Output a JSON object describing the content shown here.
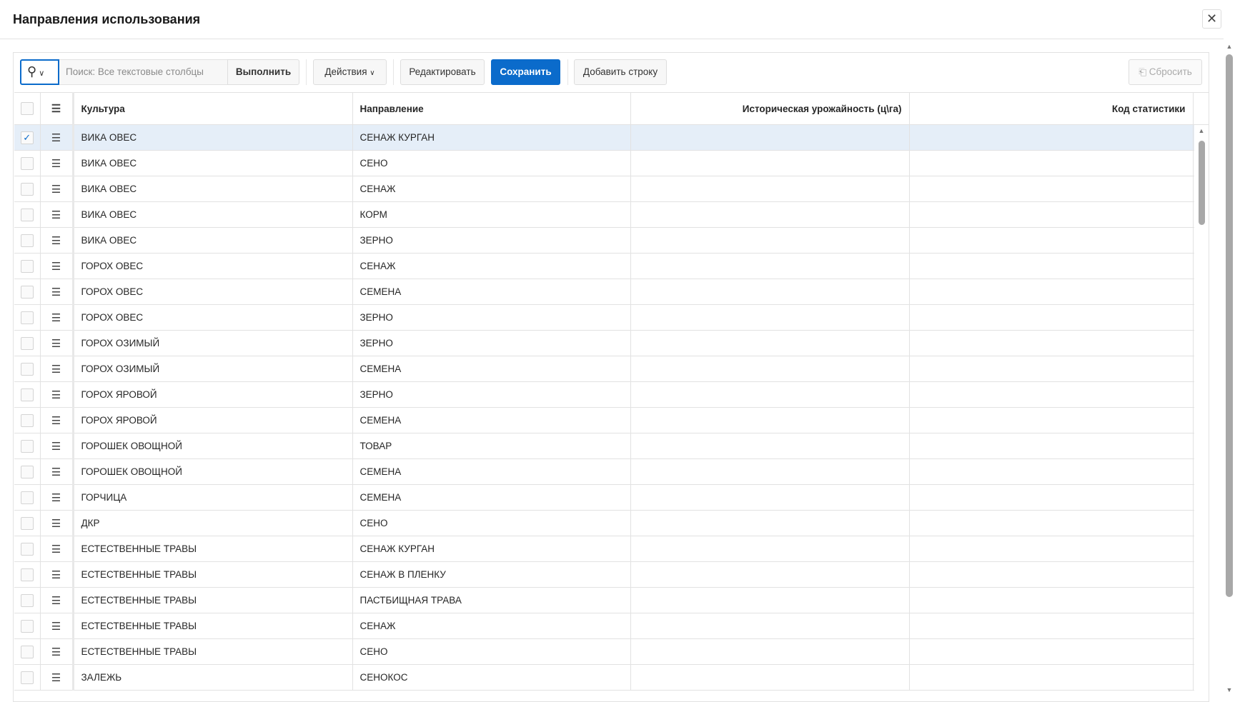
{
  "dialog": {
    "title": "Направления использования",
    "close_icon": "close-icon"
  },
  "toolbar": {
    "search_placeholder": "Поиск: Все текстовые столбцы",
    "run_label": "Выполнить",
    "actions_label": "Действия",
    "edit_label": "Редактировать",
    "save_label": "Сохранить",
    "add_row_label": "Добавить строку",
    "reset_label": "Сбросить",
    "accent": "#0b6bcb"
  },
  "table": {
    "columns": [
      "Культура",
      "Направление",
      "Историческая урожайность (ц\\га)",
      "Код статистики"
    ],
    "rows": [
      {
        "culture": "ВИКА ОВЕС",
        "direction": "СЕНАЖ КУРГАН",
        "selected": true
      },
      {
        "culture": "ВИКА ОВЕС",
        "direction": "СЕНО"
      },
      {
        "culture": "ВИКА ОВЕС",
        "direction": "СЕНАЖ"
      },
      {
        "culture": "ВИКА ОВЕС",
        "direction": "КОРМ"
      },
      {
        "culture": "ВИКА ОВЕС",
        "direction": "ЗЕРНО"
      },
      {
        "culture": "ГОРОХ ОВЕС",
        "direction": "СЕНАЖ"
      },
      {
        "culture": "ГОРОХ ОВЕС",
        "direction": "СЕМЕНА"
      },
      {
        "culture": "ГОРОХ ОВЕС",
        "direction": "ЗЕРНО"
      },
      {
        "culture": "ГОРОХ ОЗИМЫЙ",
        "direction": "ЗЕРНО"
      },
      {
        "culture": "ГОРОХ ОЗИМЫЙ",
        "direction": "СЕМЕНА"
      },
      {
        "culture": "ГОРОХ ЯРОВОЙ",
        "direction": "ЗЕРНО"
      },
      {
        "culture": "ГОРОХ ЯРОВОЙ",
        "direction": "СЕМЕНА"
      },
      {
        "culture": "ГОРОШЕК ОВОЩНОЙ",
        "direction": "ТОВАР"
      },
      {
        "culture": "ГОРОШЕК ОВОЩНОЙ",
        "direction": "СЕМЕНА"
      },
      {
        "culture": "ГОРЧИЦА",
        "direction": "СЕМЕНА"
      },
      {
        "culture": "ДКР",
        "direction": "СЕНО"
      },
      {
        "culture": "ЕСТЕСТВЕННЫЕ ТРАВЫ",
        "direction": "СЕНАЖ КУРГАН"
      },
      {
        "culture": "ЕСТЕСТВЕННЫЕ ТРАВЫ",
        "direction": "СЕНАЖ В ПЛЕНКУ"
      },
      {
        "culture": "ЕСТЕСТВЕННЫЕ ТРАВЫ",
        "direction": "ПАСТБИЩНАЯ ТРАВА"
      },
      {
        "culture": "ЕСТЕСТВЕННЫЕ ТРАВЫ",
        "direction": "СЕНАЖ"
      },
      {
        "culture": "ЕСТЕСТВЕННЫЕ ТРАВЫ",
        "direction": "СЕНО"
      },
      {
        "culture": "ЗАЛЕЖЬ",
        "direction": "СЕНОКОС"
      }
    ]
  }
}
